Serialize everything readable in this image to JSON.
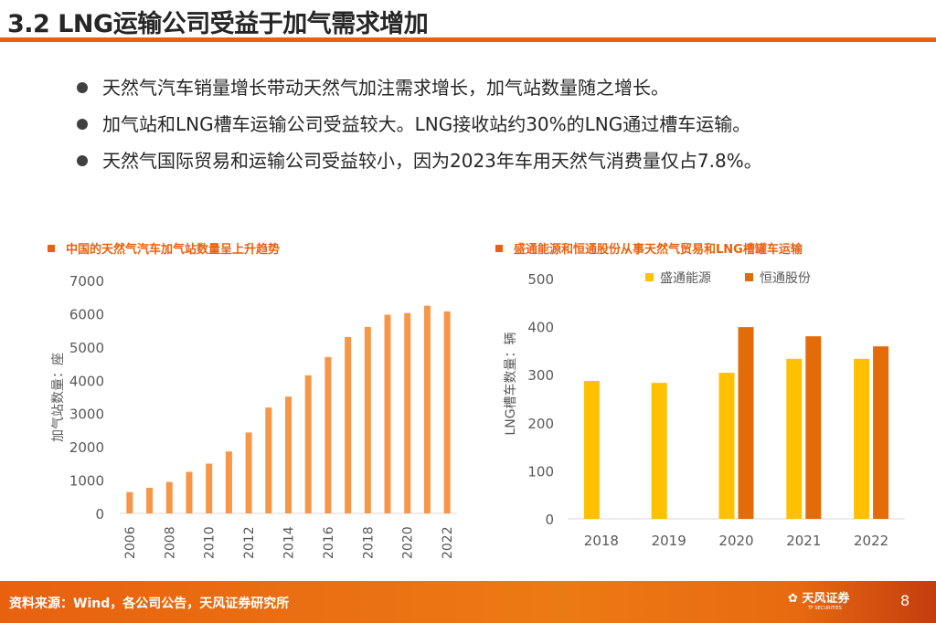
{
  "title": "3.2 LNG运输公司受益于加气需求增加",
  "bullets": [
    "天然气汽车销量增长带动天然气加注需求增长，加气站数量随之增长。",
    "加气站和LNG槽车运输公司受益较大。LNG接收站约30%的LNG通过槽车运输。",
    "天然气国际贸易和运输公司受益较小，因为2023年车用天然气消费量仅占7.8%。"
  ],
  "footer": {
    "source": "资料来源：Wind，各公司公告，天风证券研究所",
    "logo": "天风证券",
    "logo_sub": "TF SECURITIES",
    "page": "8"
  },
  "colors": {
    "accent": "#e8610f",
    "bar_left": "#f79646",
    "series1": "#ffc000",
    "series2": "#e36c09"
  },
  "chart_data": [
    {
      "type": "bar",
      "title": "中国的天然气汽车加气站数量呈上升趋势",
      "ylabel": "加气站数量：座",
      "ylim": [
        0,
        7000
      ],
      "yticks": [
        "0",
        "1000",
        "2000",
        "3000",
        "4000",
        "5000",
        "6000",
        "7000"
      ],
      "categories": [
        "2006",
        "2007",
        "2008",
        "2009",
        "2010",
        "2011",
        "2012",
        "2013",
        "2014",
        "2015",
        "2016",
        "2017",
        "2018",
        "2019",
        "2020",
        "2021",
        "2022"
      ],
      "xtick_labels": [
        "2006",
        "",
        "2008",
        "",
        "2010",
        "",
        "2012",
        "",
        "2014",
        "",
        "2016",
        "",
        "2018",
        "",
        "2020",
        "",
        "2022"
      ],
      "values": [
        640,
        770,
        945,
        1250,
        1495,
        1860,
        2430,
        3180,
        3510,
        4150,
        4700,
        5300,
        5600,
        5970,
        6020,
        6240,
        6070
      ],
      "grid": false
    },
    {
      "type": "bar",
      "title": "盛通能源和恒通股份从事天然气贸易和LNG槽罐车运输",
      "ylabel": "LNG槽车数量：辆",
      "ylim": [
        0,
        500
      ],
      "yticks": [
        "0",
        "100",
        "200",
        "300",
        "400",
        "500"
      ],
      "categories": [
        "2018",
        "2019",
        "2020",
        "2021",
        "2022"
      ],
      "legend": "top",
      "series": [
        {
          "name": "盛通能源",
          "values": [
            287,
            283,
            304,
            333,
            333
          ]
        },
        {
          "name": "恒通股份",
          "values": [
            null,
            null,
            399,
            380,
            359
          ]
        }
      ],
      "grid": false
    }
  ]
}
